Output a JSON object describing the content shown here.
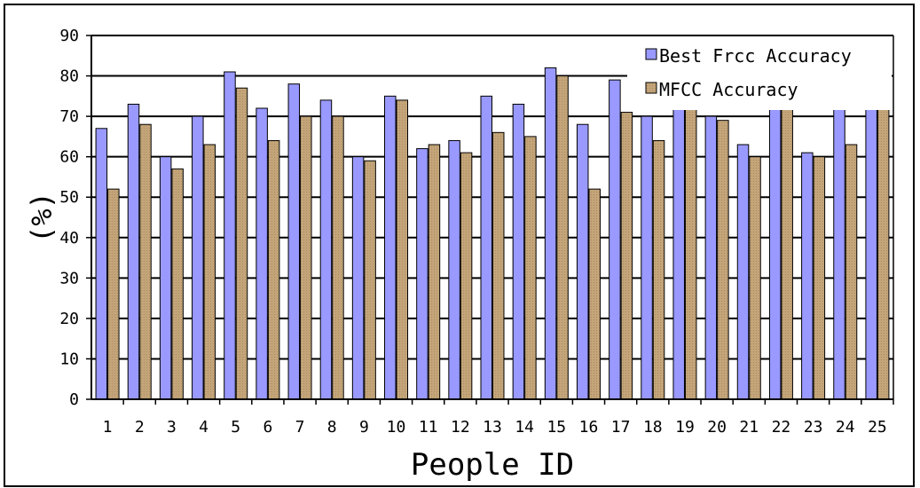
{
  "chart_data": {
    "type": "bar",
    "xlabel": "People ID",
    "ylabel": "(%)",
    "ylim": [
      0,
      90
    ],
    "yticks": [
      0,
      10,
      20,
      30,
      40,
      50,
      60,
      70,
      80,
      90
    ],
    "grid": "horizontal",
    "legend_position": "top-right",
    "categories": [
      "1",
      "2",
      "3",
      "4",
      "5",
      "6",
      "7",
      "8",
      "9",
      "10",
      "11",
      "12",
      "13",
      "14",
      "15",
      "16",
      "17",
      "18",
      "19",
      "20",
      "21",
      "22",
      "23",
      "24",
      "25"
    ],
    "series": [
      {
        "name": "Best Frcc Accuracy",
        "color": "#9999ff",
        "values": [
          67,
          73,
          60,
          70,
          81,
          72,
          78,
          74,
          60,
          75,
          62,
          64,
          75,
          73,
          82,
          68,
          79,
          70,
          73,
          70,
          63,
          73,
          61,
          73,
          78
        ]
      },
      {
        "name": "MFCC Accuracy",
        "color": "#c4a57a",
        "values": [
          52,
          68,
          57,
          63,
          77,
          64,
          70,
          70,
          59,
          74,
          63,
          61,
          66,
          65,
          80,
          52,
          71,
          64,
          72,
          69,
          60,
          73,
          60,
          63,
          78
        ]
      }
    ]
  }
}
